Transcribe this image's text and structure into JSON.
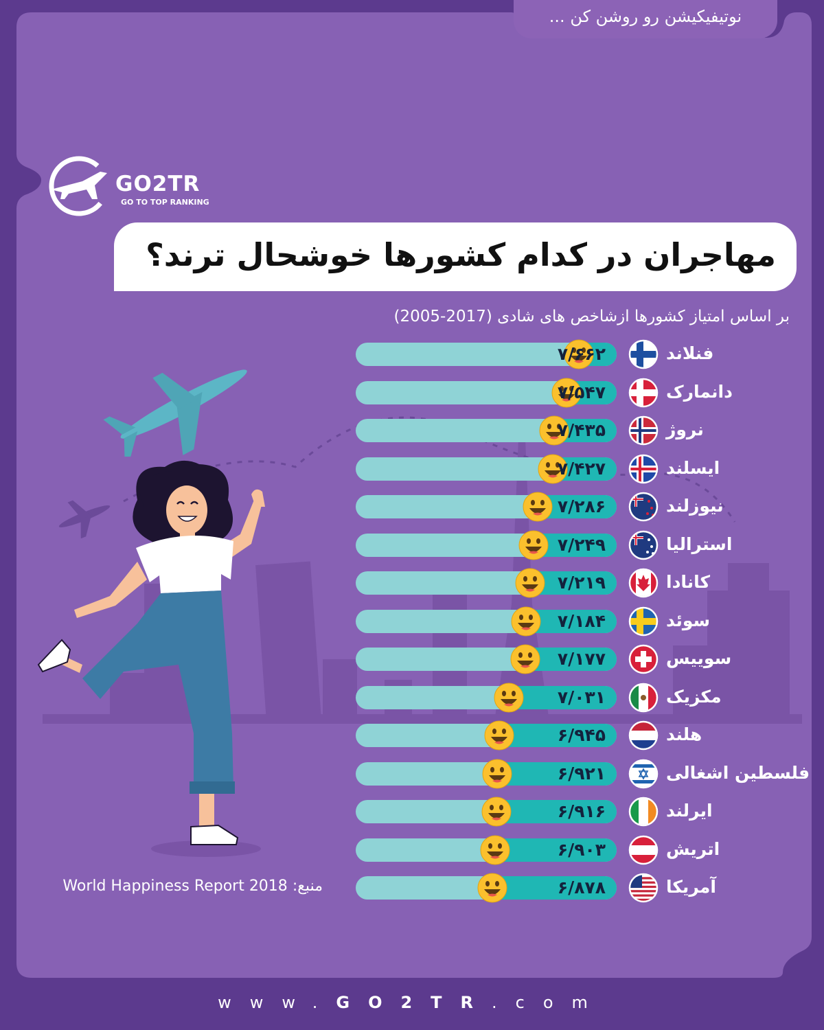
{
  "notice": "نوتیفیکیشن رو روشن کن ...",
  "brand": {
    "logo": "GO2TR",
    "logo_sub": "GO TO TOP RANKING"
  },
  "title": "مهاجران در کدام کشورها خوشحال ترند؟",
  "subtitle": "بر اساس امتیاز کشورها ازشاخص های شادی (2017-2005)",
  "source_label": "منبع:",
  "source_text": "World Happiness Report 2018",
  "footer": {
    "pre": "www.",
    "brand": "GO2TR",
    "post": ".com"
  },
  "icons": {
    "logo": "plane-logo-icon",
    "marker": "smiley-face-icon",
    "hero": "waving-woman-illustration",
    "plane": "airplane-icon"
  },
  "colors": {
    "background": "#5c3a8e",
    "panel": "#8761b4",
    "bar_track": "#8fd3d6",
    "bar_fill": "#1fb7b4",
    "smiley": "#fbc02d"
  },
  "chart_data": {
    "type": "bar",
    "orientation": "horizontal",
    "title": "مهاجران در کدام کشورها خوشحال ترند؟",
    "subtitle": "بر اساس امتیاز کشورها ازشاخص های شادی (2017-2005)",
    "categories": [
      "فنلاند",
      "دانمارک",
      "نروژ",
      "ایسلند",
      "نیوزلند",
      "استرالیا",
      "کانادا",
      "سوئد",
      "سوییس",
      "مکزیک",
      "هلند",
      "فلسطین اشغالی",
      "ایرلند",
      "اتریش",
      "آمریکا"
    ],
    "values": [
      7.662,
      7.547,
      7.435,
      7.427,
      7.286,
      7.249,
      7.219,
      7.184,
      7.177,
      7.031,
      6.945,
      6.921,
      6.916,
      6.903,
      6.878
    ],
    "value_labels": [
      "۷/۶۶۲",
      "۷/۵۴۷",
      "۷/۴۳۵",
      "۷/۴۲۷",
      "۷/۲۸۶",
      "۷/۲۴۹",
      "۷/۲۱۹",
      "۷/۱۸۴",
      "۷/۱۷۷",
      "۷/۰۳۱",
      "۶/۹۴۵",
      "۶/۹۲۱",
      "۶/۹۱۶",
      "۶/۹۰۳",
      "۶/۸۷۸"
    ],
    "flags": [
      "finland",
      "denmark",
      "norway",
      "iceland",
      "new-zealand",
      "australia",
      "canada",
      "sweden",
      "switzerland",
      "mexico",
      "netherlands",
      "israel",
      "ireland",
      "austria",
      "usa"
    ],
    "xlim": [
      5.65,
      8.0
    ],
    "grid": false,
    "legend": "none"
  }
}
